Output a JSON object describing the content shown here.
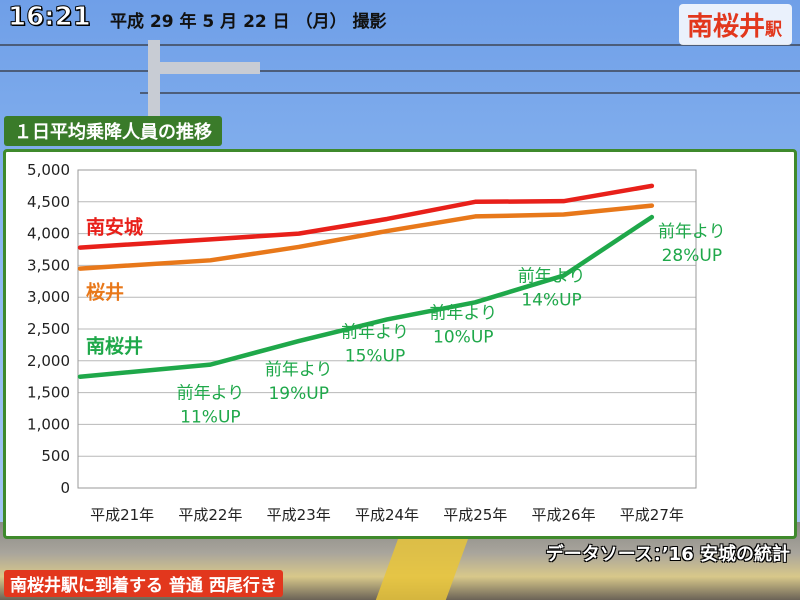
{
  "header": {
    "time": "16:21",
    "date": "平成 29 年 5 月 22 日 （月） 撮影",
    "station_name": "南桜井",
    "station_suffix": "駅"
  },
  "chart_title": "１日平均乗降人員の推移",
  "source": "データソース：’16 安城の統計",
  "caption": "南桜井駅に到着する 普通 西尾行き",
  "colors": {
    "south_anjo": "#e8201a",
    "sakurai": "#e8781a",
    "minami_sakurai": "#1fa84a",
    "grid": "#b8b8b8",
    "frame": "#3f8a2c"
  },
  "chart_data": {
    "type": "line",
    "title": "１日平均乗降人員の推移",
    "categories": [
      "平成21年",
      "平成22年",
      "平成23年",
      "平成24年",
      "平成25年",
      "平成26年",
      "平成27年"
    ],
    "ylim": [
      0,
      5000
    ],
    "y_ticks": [
      "0",
      "500",
      "1,000",
      "1,500",
      "2,000",
      "2,500",
      "3,000",
      "3,500",
      "4,000",
      "4,500",
      "5,000"
    ],
    "grid": true,
    "series": [
      {
        "name": "南安城",
        "values": [
          3780,
          3910,
          4000,
          4230,
          4500,
          4510,
          4750
        ]
      },
      {
        "name": "桜井",
        "values": [
          3450,
          3580,
          3790,
          4040,
          4270,
          4300,
          4440
        ]
      },
      {
        "name": "南桜井",
        "values": [
          1750,
          1940,
          2310,
          2650,
          2920,
          3340,
          4260
        ]
      }
    ],
    "annotations": [
      {
        "line1": "前年より",
        "line2": "11%UP"
      },
      {
        "line1": "前年より",
        "line2": "19%UP"
      },
      {
        "line1": "前年より",
        "line2": "15%UP"
      },
      {
        "line1": "前年より",
        "line2": "10%UP"
      },
      {
        "line1": "前年より",
        "line2": "14%UP"
      },
      {
        "line1": "前年より",
        "line2": "28%UP"
      }
    ]
  }
}
